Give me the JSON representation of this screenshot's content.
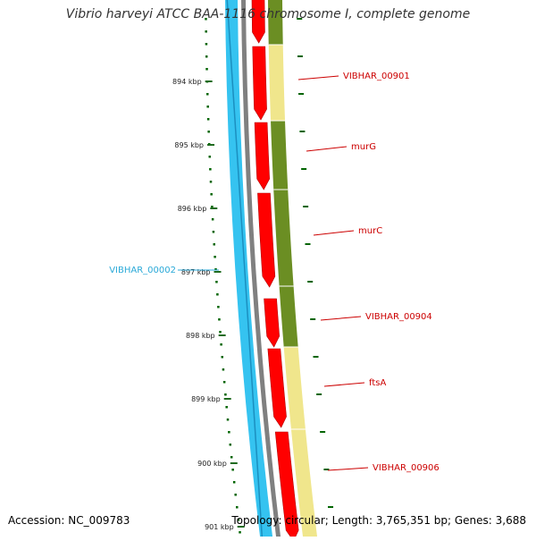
{
  "title": "Vibrio harveyi ATCC BAA-1116 chromosome I, complete genome",
  "accession_text": "Accession: NC_009783",
  "summary_text": "Topology: circular; Length: 3,765,351 bp; Genes: 3,688",
  "colors": {
    "forward_cds": "#ff0000",
    "reverse_cds": "#35c3f0",
    "backbone": "#808080",
    "gc_high": "#6b8e23",
    "gc_low": "#f0e68c",
    "gc_skew": "#006400",
    "label_forward": "#cc0000",
    "label_reverse": "#2aa9d8",
    "tick": "#1f6b1f"
  },
  "ticks": [
    {
      "label": "894 kbp"
    },
    {
      "label": "895 kbp"
    },
    {
      "label": "896 kbp"
    },
    {
      "label": "897 kbp"
    },
    {
      "label": "898 kbp"
    },
    {
      "label": "899 kbp"
    },
    {
      "label": "900 kbp"
    },
    {
      "label": "901 kbp"
    }
  ],
  "genes": [
    {
      "name": "VIBHAR_00901",
      "strand": "forward"
    },
    {
      "name": "murG",
      "strand": "forward"
    },
    {
      "name": "murC",
      "strand": "forward"
    },
    {
      "name": "VIBHAR_00904",
      "strand": "forward"
    },
    {
      "name": "ftsA",
      "strand": "forward"
    },
    {
      "name": "VIBHAR_00906",
      "strand": "forward"
    },
    {
      "name": "VIBHAR_00002",
      "strand": "reverse"
    }
  ]
}
